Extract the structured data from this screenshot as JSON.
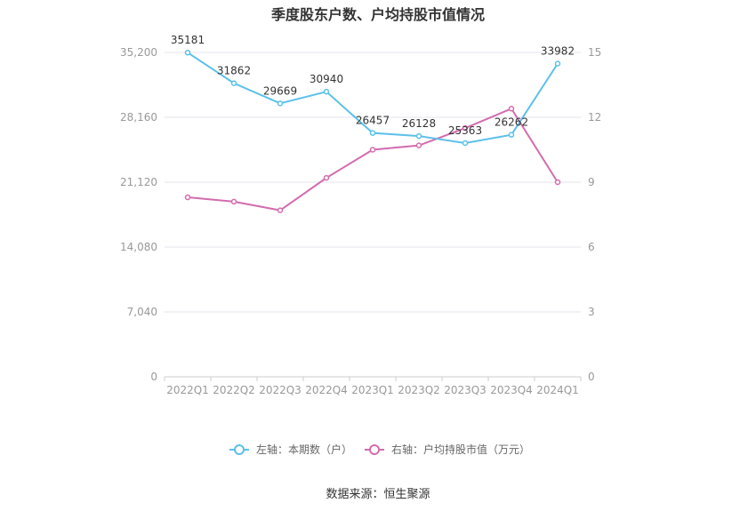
{
  "chart_data": {
    "type": "line",
    "title": "季度股东户数、户均持股市值情况",
    "categories": [
      "2022Q1",
      "2022Q2",
      "2022Q3",
      "2022Q4",
      "2023Q1",
      "2023Q2",
      "2023Q3",
      "2023Q4",
      "2024Q1"
    ],
    "left_axis": {
      "ticks": [
        "0",
        "7,040",
        "14,080",
        "21,120",
        "28,160",
        "35,200"
      ],
      "ylim": [
        0,
        35200
      ]
    },
    "right_axis": {
      "ticks": [
        "0",
        "3",
        "6",
        "9",
        "12",
        "15"
      ],
      "ylim": [
        0,
        15
      ]
    },
    "series": [
      {
        "name": "左轴：本期数（户）",
        "axis": "left",
        "color": "#5bc0eb",
        "values": [
          35181,
          31862,
          29669,
          30940,
          26457,
          26128,
          25363,
          26262,
          33982
        ],
        "labels": [
          "35181",
          "31862",
          "29669",
          "30940",
          "26457",
          "26128",
          "25363",
          "26262",
          "33982"
        ]
      },
      {
        "name": "右轴：户均持股市值（万元）",
        "axis": "right",
        "color": "#d36cae",
        "values": [
          8.3,
          8.1,
          7.7,
          9.2,
          10.5,
          10.7,
          11.5,
          12.4,
          9.0
        ]
      }
    ],
    "grid": true,
    "legend_position": "bottom"
  },
  "footer": {
    "source": "数据来源：恒生聚源"
  }
}
